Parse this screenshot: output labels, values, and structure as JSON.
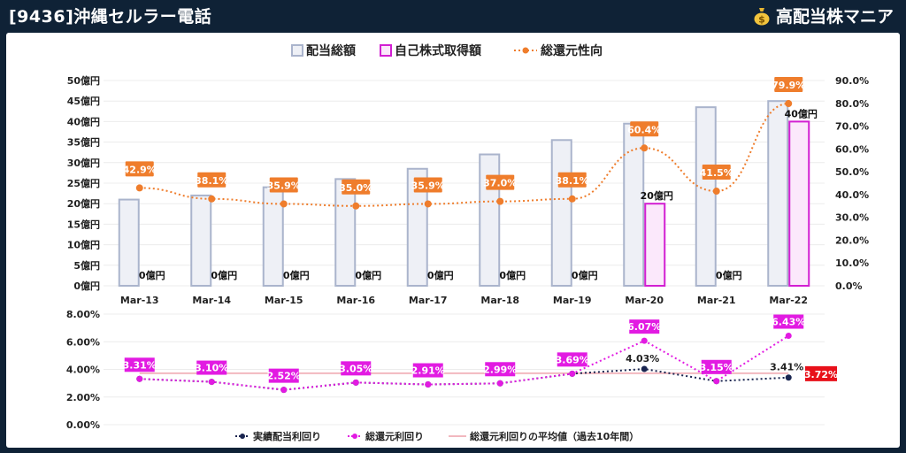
{
  "header": {
    "title": "[9436]沖縄セルラー電話",
    "brand": "高配当株マニア",
    "brand_icon": "money-bag-icon"
  },
  "colors": {
    "background": "#0f2236",
    "dividend_fill": "#eef0f6",
    "dividend_stroke": "#aab4cc",
    "buyback_fill": "#fbe8fb",
    "buyback_stroke": "#d21fd2",
    "payout_line": "#ef7d2c",
    "payout_label_bg": "#ef7d2c",
    "actual_yield": "#1a2550",
    "total_yield": "#e21be2",
    "average_line": "#f2b8bf",
    "highlight_bg": "#e8101a"
  },
  "chart_data": [
    {
      "type": "bar",
      "categories": [
        "Mar-13",
        "Mar-14",
        "Mar-15",
        "Mar-16",
        "Mar-17",
        "Mar-18",
        "Mar-19",
        "Mar-20",
        "Mar-21",
        "Mar-22"
      ],
      "series": [
        {
          "name": "配当総額",
          "values": [
            21,
            22,
            24,
            26,
            28.5,
            32,
            35.5,
            39.5,
            43.5,
            45
          ]
        },
        {
          "name": "自己株式取得額",
          "values": [
            0,
            0,
            0,
            0,
            0,
            0,
            0,
            20,
            0,
            40
          ]
        },
        {
          "name": "総還元性向",
          "values": [
            42.9,
            38.1,
            35.9,
            35.0,
            35.9,
            37.0,
            38.1,
            60.4,
            41.5,
            79.9
          ]
        }
      ],
      "buyback_labels": [
        "0億円",
        "0億円",
        "0億円",
        "0億円",
        "0億円",
        "0億円",
        "0億円",
        "20億円",
        "0億円",
        "40億円"
      ],
      "payout_labels": [
        "42.9%",
        "38.1%",
        "35.9%",
        "35.0%",
        "35.9%",
        "37.0%",
        "38.1%",
        "60.4%",
        "41.5%",
        "79.9%"
      ],
      "ylim": [
        0,
        50
      ],
      "yticks": [
        "0億円",
        "5億円",
        "10億円",
        "15億円",
        "20億円",
        "25億円",
        "30億円",
        "35億円",
        "40億円",
        "45億円",
        "50億円"
      ],
      "y2lim": [
        0,
        90
      ],
      "y2ticks": [
        "0.0%",
        "10.0%",
        "20.0%",
        "30.0%",
        "40.0%",
        "50.0%",
        "60.0%",
        "70.0%",
        "80.0%",
        "90.0%"
      ],
      "legend_position": "top",
      "grid": true
    },
    {
      "type": "line",
      "categories": [
        "Mar-13",
        "Mar-14",
        "Mar-15",
        "Mar-16",
        "Mar-17",
        "Mar-18",
        "Mar-19",
        "Mar-20",
        "Mar-21",
        "Mar-22"
      ],
      "series": [
        {
          "name": "実績配当利回り",
          "values": [
            3.31,
            3.1,
            2.52,
            3.05,
            2.91,
            2.99,
            3.69,
            4.03,
            3.15,
            3.41
          ]
        },
        {
          "name": "総還元利回り",
          "values": [
            3.31,
            3.1,
            2.52,
            3.05,
            2.91,
            2.99,
            3.69,
            6.07,
            3.15,
            6.43
          ]
        },
        {
          "name": "総還元利回りの平均値（過去10年間）",
          "values": [
            3.72,
            3.72,
            3.72,
            3.72,
            3.72,
            3.72,
            3.72,
            3.72,
            3.72,
            3.72
          ]
        }
      ],
      "total_labels": [
        "3.31%",
        "3.10%",
        "2.52%",
        "3.05%",
        "2.91%",
        "2.99%",
        "3.69%",
        "6.07%",
        "3.15%",
        "6.43%"
      ],
      "actual_labels": [
        "4.03%",
        "3.41%"
      ],
      "average_label": "3.72%",
      "ylim": [
        0,
        8
      ],
      "yticks": [
        "0.00%",
        "2.00%",
        "4.00%",
        "6.00%",
        "8.00%"
      ],
      "legend_position": "bottom",
      "grid": true
    }
  ]
}
